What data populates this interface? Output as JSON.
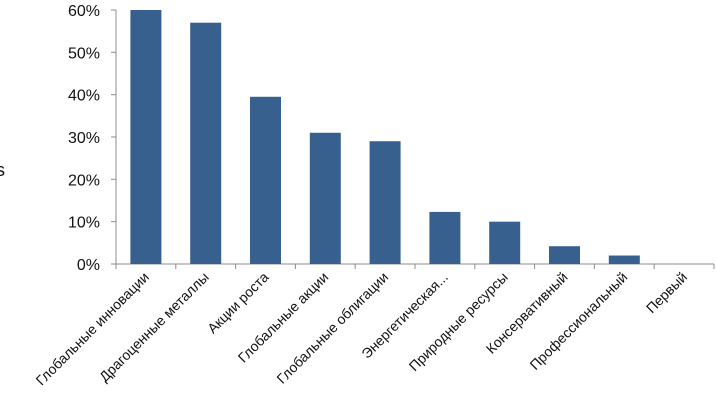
{
  "chart_data": {
    "type": "bar",
    "categories": [
      "Глобальные инновации",
      "Драгоценные  металлы",
      "Акции роста",
      "Глобальные акции",
      "Глобальные облигации",
      "Энергетическая...",
      "Природные ресурсы",
      "Консервативный",
      "Профессиональный",
      "Первый"
    ],
    "values": [
      60,
      57,
      39.5,
      31,
      29,
      12.3,
      10,
      4.2,
      2,
      0
    ],
    "ylim": [
      0,
      60
    ],
    "yticks": [
      0,
      10,
      20,
      30,
      40,
      50,
      60
    ],
    "ytick_labels": [
      "0%",
      "10%",
      "20%",
      "30%",
      "40%",
      "50%",
      "60%"
    ],
    "grid": false,
    "bar_color": "#38608f",
    "title": "",
    "xlabel": "",
    "ylabel": ""
  },
  "edge_text": "s"
}
